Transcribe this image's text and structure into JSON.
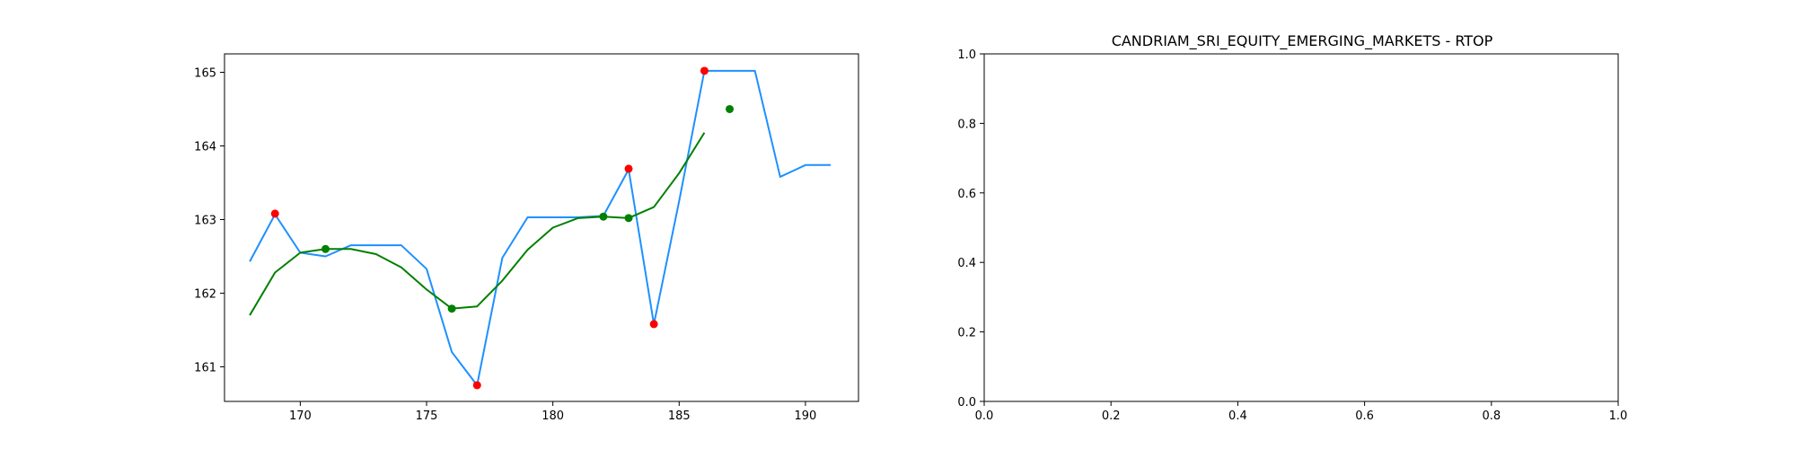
{
  "chart_data": [
    {
      "type": "line",
      "title": "",
      "xlabel": "",
      "ylabel": "",
      "xlim": [
        167.0,
        192.1
      ],
      "ylim": [
        160.53,
        165.25
      ],
      "xticks": [
        170,
        175,
        180,
        185,
        190
      ],
      "yticks": [
        161,
        162,
        163,
        164,
        165
      ],
      "grid": false,
      "legend": "none",
      "series": [
        {
          "kind": "line",
          "color": "#1e90ff",
          "x": [
            168,
            169,
            170,
            171,
            172,
            173,
            174,
            175,
            176,
            177,
            178,
            179,
            180,
            181,
            182,
            183,
            184,
            185,
            186,
            187,
            188,
            189,
            190,
            191
          ],
          "y": [
            162.43,
            163.07,
            162.55,
            162.5,
            162.65,
            162.65,
            162.65,
            162.33,
            161.2,
            160.75,
            162.48,
            163.03,
            163.03,
            163.03,
            163.05,
            163.68,
            161.58,
            163.25,
            165.02,
            165.02,
            165.02,
            163.58,
            163.74,
            163.74
          ]
        },
        {
          "kind": "line",
          "color": "#008000",
          "x": [
            168,
            169,
            170,
            171,
            172,
            173,
            174,
            175,
            176,
            177,
            178,
            179,
            180,
            181,
            182,
            183,
            184,
            185,
            186
          ],
          "y": [
            161.7,
            162.28,
            162.55,
            162.6,
            162.6,
            162.53,
            162.35,
            162.05,
            161.79,
            161.82,
            162.17,
            162.59,
            162.89,
            163.02,
            163.04,
            163.02,
            163.17,
            163.63,
            164.18
          ]
        },
        {
          "kind": "scatter",
          "color": "#ff0000",
          "x": [
            169,
            177,
            183,
            184,
            186
          ],
          "y": [
            163.08,
            160.75,
            163.69,
            161.58,
            165.02
          ]
        },
        {
          "kind": "scatter",
          "color": "#008000",
          "x": [
            171,
            176,
            182,
            183,
            187
          ],
          "y": [
            162.6,
            161.79,
            163.04,
            163.02,
            164.5
          ]
        }
      ]
    },
    {
      "type": "line",
      "title": "CANDRIAM_SRI_EQUITY_EMERGING_MARKETS - RTOP",
      "xlabel": "",
      "ylabel": "",
      "xlim": [
        0.0,
        1.0
      ],
      "ylim": [
        0.0,
        1.0
      ],
      "xticks": [
        "0.0",
        "0.2",
        "0.4",
        "0.6",
        "0.8",
        "1.0"
      ],
      "yticks": [
        "0.0",
        "0.2",
        "0.4",
        "0.6",
        "0.8",
        "1.0"
      ],
      "grid": false,
      "legend": "none",
      "series": []
    }
  ]
}
